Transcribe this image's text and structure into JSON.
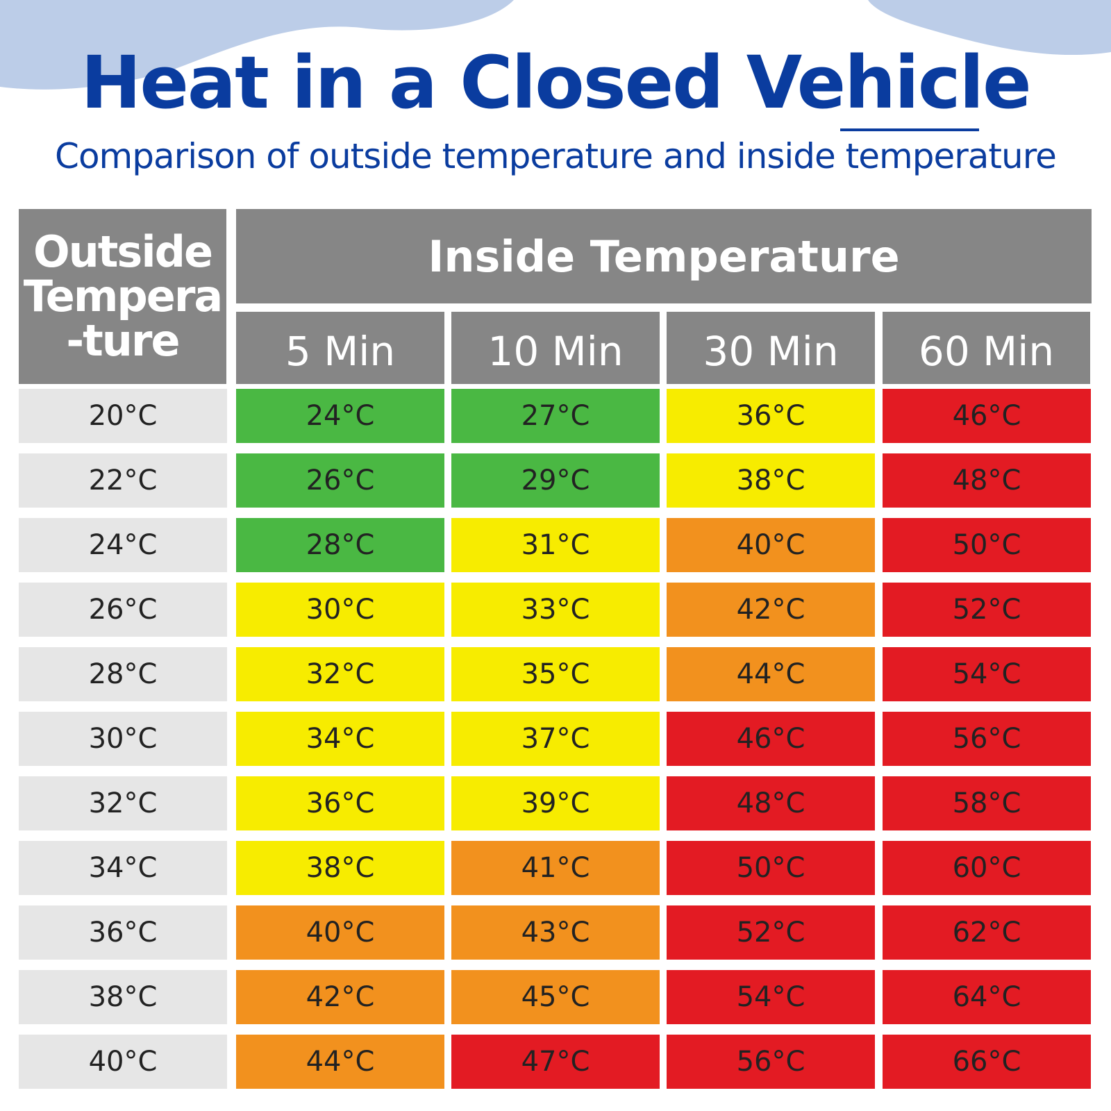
{
  "header": {
    "title": "Heat in a Closed Vehicle",
    "subtitle": "Comparison of outside temperature and inside temperature"
  },
  "table": {
    "corner_header": [
      "Outside",
      "Tempera",
      "-ture"
    ],
    "group_header": "Inside Temperature",
    "columns": [
      "5 Min",
      "10 Min",
      "30 Min",
      "60 Min"
    ],
    "rows": [
      {
        "outside": "20°C",
        "cells": [
          {
            "text": "24°C",
            "color": "#4ab843"
          },
          {
            "text": "27°C",
            "color": "#4ab843"
          },
          {
            "text": "36°C",
            "color": "#f7ec00"
          },
          {
            "text": "46°C",
            "color": "#e31b23"
          }
        ]
      },
      {
        "outside": "22°C",
        "cells": [
          {
            "text": "26°C",
            "color": "#4ab843"
          },
          {
            "text": "29°C",
            "color": "#4ab843"
          },
          {
            "text": "38°C",
            "color": "#f7ec00"
          },
          {
            "text": "48°C",
            "color": "#e31b23"
          }
        ]
      },
      {
        "outside": "24°C",
        "cells": [
          {
            "text": "28°C",
            "color": "#4ab843"
          },
          {
            "text": "31°C",
            "color": "#f7ec00"
          },
          {
            "text": "40°C",
            "color": "#f2911e"
          },
          {
            "text": "50°C",
            "color": "#e31b23"
          }
        ]
      },
      {
        "outside": "26°C",
        "cells": [
          {
            "text": "30°C",
            "color": "#f7ec00"
          },
          {
            "text": "33°C",
            "color": "#f7ec00"
          },
          {
            "text": "42°C",
            "color": "#f2911e"
          },
          {
            "text": "52°C",
            "color": "#e31b23"
          }
        ]
      },
      {
        "outside": "28°C",
        "cells": [
          {
            "text": "32°C",
            "color": "#f7ec00"
          },
          {
            "text": "35°C",
            "color": "#f7ec00"
          },
          {
            "text": "44°C",
            "color": "#f2911e"
          },
          {
            "text": "54°C",
            "color": "#e31b23"
          }
        ]
      },
      {
        "outside": "30°C",
        "cells": [
          {
            "text": "34°C",
            "color": "#f7ec00"
          },
          {
            "text": "37°C",
            "color": "#f7ec00"
          },
          {
            "text": "46°C",
            "color": "#e31b23"
          },
          {
            "text": "56°C",
            "color": "#e31b23"
          }
        ]
      },
      {
        "outside": "32°C",
        "cells": [
          {
            "text": "36°C",
            "color": "#f7ec00"
          },
          {
            "text": "39°C",
            "color": "#f7ec00"
          },
          {
            "text": "48°C",
            "color": "#e31b23"
          },
          {
            "text": "58°C",
            "color": "#e31b23"
          }
        ]
      },
      {
        "outside": "34°C",
        "cells": [
          {
            "text": "38°C",
            "color": "#f7ec00"
          },
          {
            "text": "41°C",
            "color": "#f2911e"
          },
          {
            "text": "50°C",
            "color": "#e31b23"
          },
          {
            "text": "60°C",
            "color": "#e31b23"
          }
        ]
      },
      {
        "outside": "36°C",
        "cells": [
          {
            "text": "40°C",
            "color": "#f2911e"
          },
          {
            "text": "43°C",
            "color": "#f2911e"
          },
          {
            "text": "52°C",
            "color": "#e31b23"
          },
          {
            "text": "62°C",
            "color": "#e31b23"
          }
        ]
      },
      {
        "outside": "38°C",
        "cells": [
          {
            "text": "42°C",
            "color": "#f2911e"
          },
          {
            "text": "45°C",
            "color": "#f2911e"
          },
          {
            "text": "54°C",
            "color": "#e31b23"
          },
          {
            "text": "64°C",
            "color": "#e31b23"
          }
        ]
      },
      {
        "outside": "40°C",
        "cells": [
          {
            "text": "44°C",
            "color": "#f2911e"
          },
          {
            "text": "47°C",
            "color": "#e31b23"
          },
          {
            "text": "56°C",
            "color": "#e31b23"
          },
          {
            "text": "66°C",
            "color": "#e31b23"
          }
        ]
      }
    ]
  }
}
